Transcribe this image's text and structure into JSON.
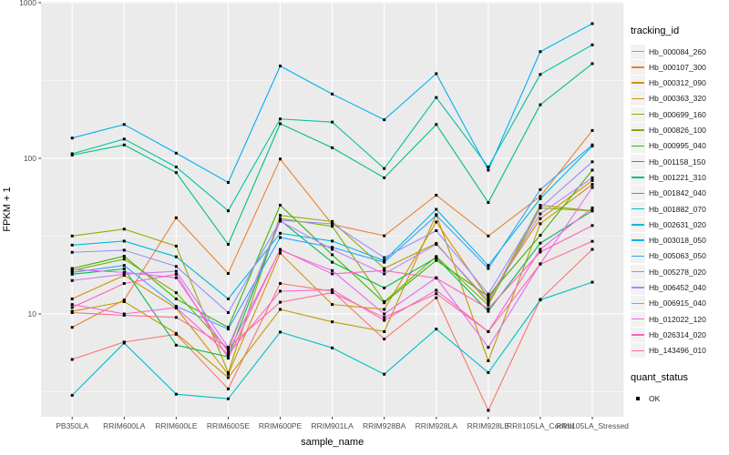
{
  "figure": {
    "background": "#FFFFFF",
    "panel_background": "#EBEBEB",
    "grid_color": "#FFFFFF",
    "point_color": "#000000",
    "axis_text_color": "#4D4D4D"
  },
  "legend": {
    "tracking_title": "tracking_id",
    "quant_title": "quant_status",
    "quant_items": [
      {
        "label": "OK",
        "marker": "black-square"
      }
    ]
  },
  "chart_data": {
    "type": "line",
    "title": "",
    "xlabel": "sample_name",
    "ylabel": "FPKM + 1",
    "y_scale": "log10",
    "y_ticks": [
      10,
      100,
      1000
    ],
    "y_minor": [
      3.162,
      31.62,
      316.2
    ],
    "ylim": [
      2.1,
      1014
    ],
    "grid": true,
    "legend_position": "right",
    "marker": "black-square",
    "categories": [
      "PB350LA",
      "RRIM600LA",
      "RRIM600LE",
      "RRIM600SE",
      "RRIM600PE",
      "RRIM901LA",
      "RRIM928BA",
      "RRIM928LA",
      "RRIM928LE",
      "RRII105LA_Control",
      "RRII105LA_Stressed"
    ],
    "series": [
      {
        "name": "Hb_000084_260",
        "color": "#F8766D",
        "values": [
          5.1,
          6.6,
          7.4,
          3.3,
          15.7,
          14.0,
          6.9,
          12.7,
          2.4,
          12.4,
          26
        ]
      },
      {
        "name": "Hb_000107_300",
        "color": "#EA8331",
        "values": [
          8.2,
          12.3,
          41.5,
          18.2,
          99,
          37.6,
          31.8,
          58,
          31.7,
          57,
          151
        ]
      },
      {
        "name": "Hb_000312_090",
        "color": "#D89000",
        "values": [
          12.5,
          17.7,
          10.9,
          4.1,
          24.6,
          11.5,
          10.7,
          39,
          12.6,
          41,
          72
        ]
      },
      {
        "name": "Hb_000363_320",
        "color": "#C09B00",
        "values": [
          10.4,
          12.0,
          7.5,
          3.9,
          10.7,
          8.9,
          7.7,
          43.5,
          5.0,
          38,
          68
        ]
      },
      {
        "name": "Hb_000699_160",
        "color": "#A3A500",
        "values": [
          31.7,
          35.1,
          27.3,
          4.2,
          43,
          39.3,
          19.6,
          28.4,
          11.8,
          50,
          46
        ]
      },
      {
        "name": "Hb_000826_100",
        "color": "#7CAE00",
        "values": [
          19.0,
          22.5,
          13.7,
          5.9,
          41,
          36.6,
          12.0,
          23.4,
          11.4,
          48,
          46
        ]
      },
      {
        "name": "Hb_000995_040",
        "color": "#39B600",
        "values": [
          19.6,
          23.5,
          12.5,
          8.2,
          50,
          24.0,
          11.8,
          22.1,
          13.0,
          32,
          84
        ]
      },
      {
        "name": "Hb_001158_150",
        "color": "#00BB4E",
        "values": [
          18.0,
          19.5,
          6.3,
          5.3,
          40,
          21.5,
          14.7,
          23.0,
          10.4,
          28.5,
          46
        ]
      },
      {
        "name": "Hb_001221_310",
        "color": "#00BF7D",
        "values": [
          105,
          122,
          81,
          28,
          167,
          117,
          75,
          165,
          52,
          221,
          406
        ]
      },
      {
        "name": "Hb_001842_040",
        "color": "#00C1A3",
        "values": [
          107,
          133,
          88,
          46,
          179,
          171,
          86,
          246,
          88,
          346,
          536
        ]
      },
      {
        "name": "Hb_001882_070",
        "color": "#00BFC4",
        "values": [
          3.0,
          6.5,
          3.05,
          2.85,
          7.65,
          6.05,
          4.1,
          8.0,
          4.2,
          12.3,
          16
        ]
      },
      {
        "name": "Hb_002631_020",
        "color": "#00BAE0",
        "values": [
          27.7,
          29.4,
          23.3,
          12.5,
          33,
          29.4,
          22.0,
          47,
          20.5,
          55,
          120
        ]
      },
      {
        "name": "Hb_003018_050",
        "color": "#00B0F6",
        "values": [
          135,
          165,
          108,
          70,
          392,
          259,
          177,
          350,
          84,
          485,
          734
        ]
      },
      {
        "name": "Hb_005063_050",
        "color": "#35A2FF",
        "values": [
          18.5,
          20.5,
          11.2,
          8.0,
          31,
          26.8,
          21.5,
          43,
          19.6,
          63,
          122
        ]
      },
      {
        "name": "Hb_005278_020",
        "color": "#9590FF",
        "values": [
          24.9,
          25.7,
          20.2,
          10.2,
          40,
          38,
          23.0,
          34.3,
          13.4,
          48,
          95
        ]
      },
      {
        "name": "Hb_006452_040",
        "color": "#C77CFF",
        "values": [
          16.4,
          18.0,
          18.8,
          6.1,
          39.5,
          26.0,
          18.1,
          28.0,
          12.2,
          44,
          75
        ]
      },
      {
        "name": "Hb_006915_040",
        "color": "#E76BF3",
        "values": [
          19.3,
          18.5,
          17.1,
          5.7,
          25.7,
          19.0,
          10.0,
          17.1,
          6.1,
          21,
          65
        ]
      },
      {
        "name": "Hb_012022_120",
        "color": "#FA62DB",
        "values": [
          11.5,
          10.0,
          11.0,
          5.5,
          14.0,
          14.3,
          9.1,
          14.2,
          7.7,
          26,
          48
        ]
      },
      {
        "name": "Hb_026314_020",
        "color": "#FF62BC",
        "values": [
          11.0,
          15.7,
          18.0,
          5.2,
          26,
          18.1,
          19.0,
          17.0,
          10.8,
          25,
          37
        ]
      },
      {
        "name": "Hb_143496_010",
        "color": "#FF6A98",
        "values": [
          10.2,
          9.8,
          9.5,
          6.1,
          11.9,
          13.7,
          9.5,
          13.5,
          7.7,
          20.9,
          29.3
        ]
      }
    ]
  }
}
